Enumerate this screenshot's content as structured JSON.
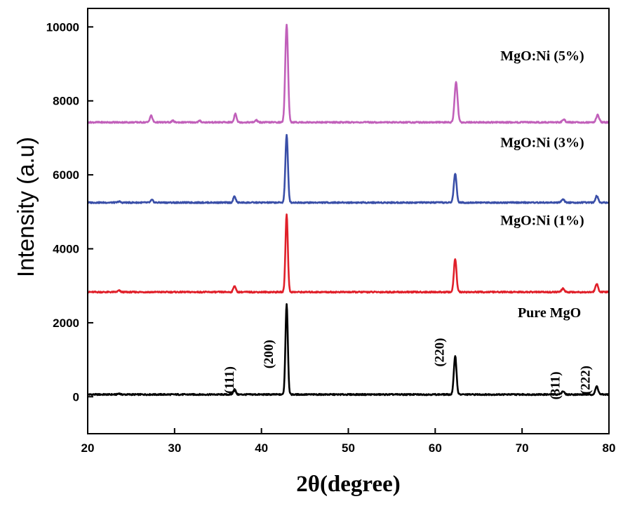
{
  "chart_data": {
    "type": "line",
    "title": "",
    "xlabel": "2θ(degree)",
    "ylabel": "Intensity (a.u)",
    "xlim": [
      20,
      80
    ],
    "ylim": [
      -1000,
      10500
    ],
    "xticks": [
      20,
      30,
      40,
      50,
      60,
      70,
      80
    ],
    "yticks": [
      0,
      2000,
      4000,
      6000,
      8000,
      10000
    ],
    "grid": false,
    "legend": "none",
    "series": [
      {
        "name": "Pure MgO",
        "color": "#000000",
        "baseline": 60,
        "peaks": [
          {
            "x": 23.6,
            "h": 30,
            "w": 0.25
          },
          {
            "x": 36.9,
            "h": 150,
            "w": 0.3
          },
          {
            "x": 42.9,
            "h": 2450,
            "w": 0.3
          },
          {
            "x": 62.3,
            "h": 1050,
            "w": 0.33
          },
          {
            "x": 74.7,
            "h": 90,
            "w": 0.35
          },
          {
            "x": 78.6,
            "h": 220,
            "w": 0.35
          }
        ]
      },
      {
        "name": "MgO:Ni (1%)",
        "color": "#e0202a",
        "baseline": 2830,
        "peaks": [
          {
            "x": 23.6,
            "h": 40,
            "w": 0.3
          },
          {
            "x": 36.9,
            "h": 170,
            "w": 0.3
          },
          {
            "x": 42.9,
            "h": 2100,
            "w": 0.3
          },
          {
            "x": 62.3,
            "h": 900,
            "w": 0.33
          },
          {
            "x": 74.7,
            "h": 90,
            "w": 0.35
          },
          {
            "x": 78.6,
            "h": 220,
            "w": 0.35
          }
        ]
      },
      {
        "name": "MgO:Ni (3%)",
        "color": "#3a4fa8",
        "baseline": 5250,
        "peaks": [
          {
            "x": 23.6,
            "h": 30,
            "w": 0.3
          },
          {
            "x": 27.4,
            "h": 70,
            "w": 0.3
          },
          {
            "x": 36.9,
            "h": 170,
            "w": 0.3
          },
          {
            "x": 42.9,
            "h": 1820,
            "w": 0.32
          },
          {
            "x": 62.3,
            "h": 780,
            "w": 0.35
          },
          {
            "x": 74.7,
            "h": 90,
            "w": 0.35
          },
          {
            "x": 78.6,
            "h": 180,
            "w": 0.35
          }
        ]
      },
      {
        "name": "MgO:Ni (5%)",
        "color": "#c160ba",
        "baseline": 7420,
        "peaks": [
          {
            "x": 27.3,
            "h": 180,
            "w": 0.33
          },
          {
            "x": 29.8,
            "h": 40,
            "w": 0.3
          },
          {
            "x": 32.9,
            "h": 40,
            "w": 0.3
          },
          {
            "x": 37.0,
            "h": 240,
            "w": 0.3
          },
          {
            "x": 39.4,
            "h": 60,
            "w": 0.3
          },
          {
            "x": 42.9,
            "h": 2650,
            "w": 0.35
          },
          {
            "x": 62.4,
            "h": 1080,
            "w": 0.38
          },
          {
            "x": 74.8,
            "h": 80,
            "w": 0.35
          },
          {
            "x": 78.7,
            "h": 200,
            "w": 0.38
          }
        ]
      }
    ],
    "series_labels": [
      {
        "text": "Pure MgO",
        "x": 69.5,
        "y": 2150
      },
      {
        "text": "MgO:Ni (1%)",
        "x": 67.5,
        "y": 4650
      },
      {
        "text": "MgO:Ni (3%)",
        "x": 67.5,
        "y": 6750
      },
      {
        "text": "MgO:Ni (5%)",
        "x": 67.5,
        "y": 9100
      }
    ],
    "annotations": [
      {
        "text": "(111)",
        "x": 36.8,
        "y": 450
      },
      {
        "text": "(200)",
        "x": 41.3,
        "y": 1150
      },
      {
        "text": "(220)",
        "x": 61.0,
        "y": 1200
      },
      {
        "text": "(311)",
        "x": 74.3,
        "y": 300
      },
      {
        "text": "(222)",
        "x": 77.8,
        "y": 450
      }
    ]
  }
}
